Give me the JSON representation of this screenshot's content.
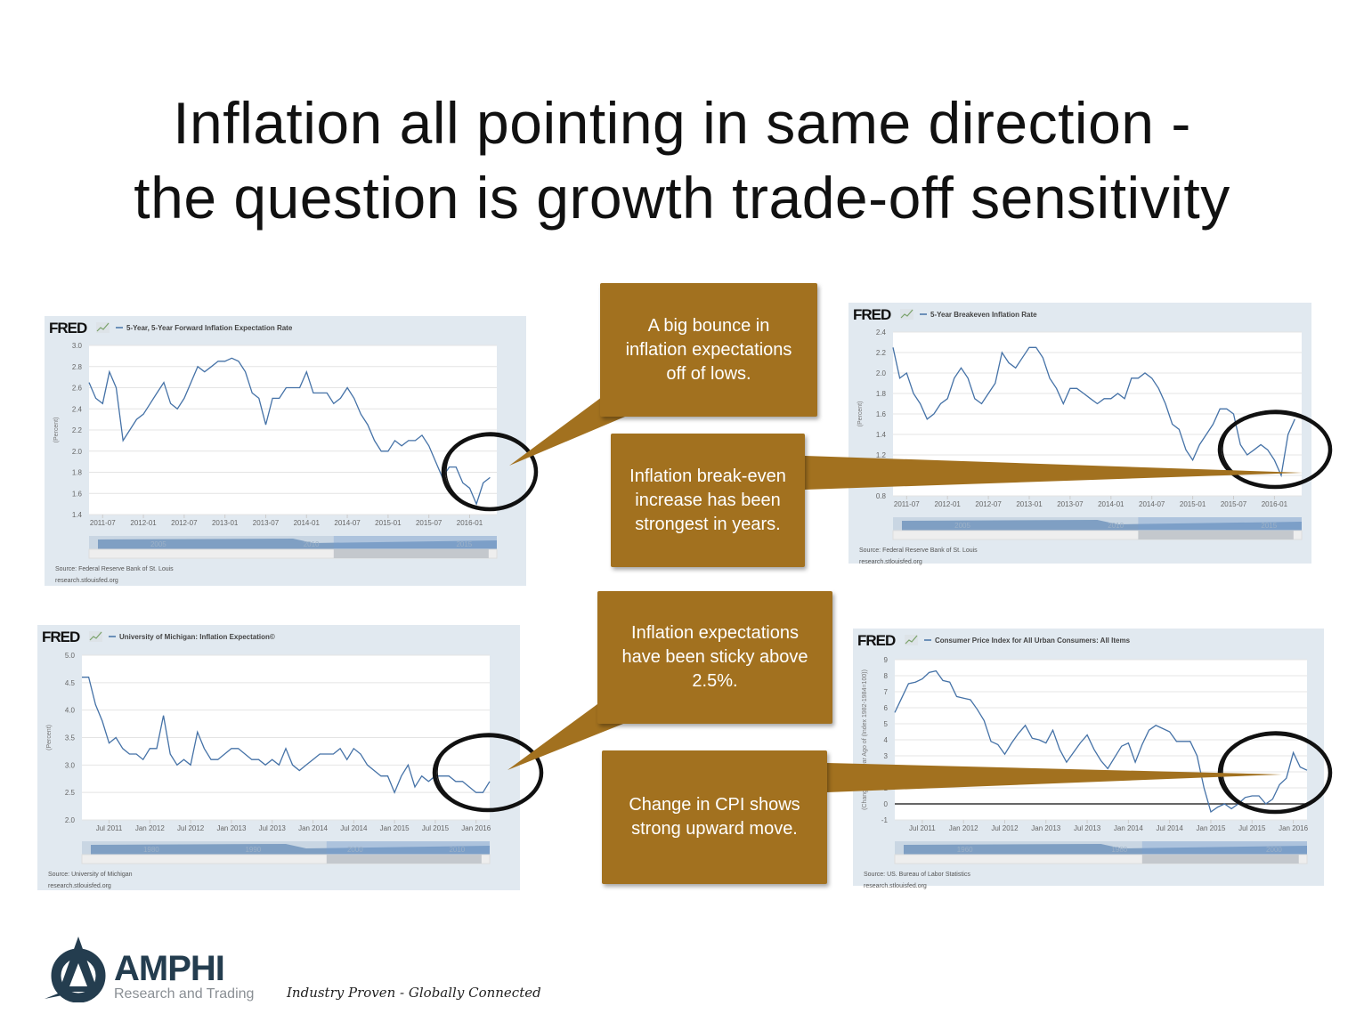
{
  "slide": {
    "title_lines": [
      "Inflation all pointing in same direction -",
      "the question is growth trade-off sensitivity"
    ]
  },
  "callouts": [
    {
      "text": [
        "A big bounce in",
        "inflation expectations",
        "off of lows."
      ]
    },
    {
      "text": [
        "Inflation break-even",
        "increase has been",
        "strongest in years."
      ]
    },
    {
      "text": [
        "Inflation expectations",
        "have been sticky above",
        "2.5%."
      ]
    },
    {
      "text": [
        "Change in CPI  shows",
        "strong upward move."
      ]
    }
  ],
  "colors": {
    "callout": "#a2711f",
    "series_line": "#4572a7",
    "panel_bg": "#e1e9f0",
    "circle": "#111111"
  },
  "footer": {
    "logo_text": "AMPHI",
    "logo_sub": "Research and Trading",
    "tagline": "Industry Proven - Globally Connected"
  },
  "chart_data": [
    {
      "type": "line",
      "brand": "FRED",
      "title": "5-Year, 5-Year Forward Inflation Expectation Rate",
      "ylabel": "(Percent)",
      "ylim": [
        1.4,
        3.0
      ],
      "yticks": [
        "3.0",
        "2.8",
        "2.6",
        "2.4",
        "2.2",
        "2.0",
        "1.8",
        "1.6",
        "1.4"
      ],
      "xlim": [
        "2011-05",
        "2016-05"
      ],
      "xticks": [
        {
          "at": "2011-07",
          "label": "2011-07"
        },
        {
          "at": "2012-01",
          "label": "2012-01"
        },
        {
          "at": "2012-07",
          "label": "2012-07"
        },
        {
          "at": "2013-01",
          "label": "2013-01"
        },
        {
          "at": "2013-07",
          "label": "2013-07"
        },
        {
          "at": "2014-01",
          "label": "2014-01"
        },
        {
          "at": "2014-07",
          "label": "2014-07"
        },
        {
          "at": "2015-01",
          "label": "2015-01"
        },
        {
          "at": "2015-07",
          "label": "2015-07"
        },
        {
          "at": "2016-01",
          "label": "2016-01"
        }
      ],
      "grid": true,
      "x_start": "2011-05",
      "values": [
        2.65,
        2.5,
        2.45,
        2.75,
        2.6,
        2.1,
        2.2,
        2.3,
        2.35,
        2.45,
        2.55,
        2.65,
        2.45,
        2.4,
        2.5,
        2.65,
        2.8,
        2.75,
        2.8,
        2.85,
        2.85,
        2.88,
        2.85,
        2.75,
        2.55,
        2.5,
        2.25,
        2.5,
        2.5,
        2.6,
        2.6,
        2.6,
        2.75,
        2.55,
        2.55,
        2.55,
        2.45,
        2.5,
        2.6,
        2.5,
        2.35,
        2.25,
        2.1,
        2.0,
        2.0,
        2.1,
        2.05,
        2.1,
        2.1,
        2.15,
        2.05,
        1.9,
        1.75,
        1.85,
        1.85,
        1.7,
        1.65,
        1.5,
        1.7,
        1.75
      ],
      "navigator_labels": [
        "2005",
        "2010",
        "2015"
      ],
      "source": "Source: Federal Reserve Bank of St. Louis",
      "url": "research.stlouisfed.org"
    },
    {
      "type": "line",
      "brand": "FRED",
      "title": "5-Year Breakeven Inflation Rate",
      "ylabel": "(Percent)",
      "ylim": [
        0.8,
        2.4
      ],
      "yticks": [
        "2.4",
        "2.2",
        "2.0",
        "1.8",
        "1.6",
        "1.4",
        "1.2",
        "1.0",
        "0.8"
      ],
      "xlim": [
        "2011-05",
        "2016-05"
      ],
      "xticks": [
        {
          "at": "2011-07",
          "label": "2011-07"
        },
        {
          "at": "2012-01",
          "label": "2012-01"
        },
        {
          "at": "2012-07",
          "label": "2012-07"
        },
        {
          "at": "2013-01",
          "label": "2013-01"
        },
        {
          "at": "2013-07",
          "label": "2013-07"
        },
        {
          "at": "2014-01",
          "label": "2014-01"
        },
        {
          "at": "2014-07",
          "label": "2014-07"
        },
        {
          "at": "2015-01",
          "label": "2015-01"
        },
        {
          "at": "2015-07",
          "label": "2015-07"
        },
        {
          "at": "2016-01",
          "label": "2016-01"
        }
      ],
      "grid": true,
      "x_start": "2011-05",
      "values": [
        2.25,
        1.95,
        2.0,
        1.8,
        1.7,
        1.55,
        1.6,
        1.7,
        1.75,
        1.95,
        2.05,
        1.95,
        1.75,
        1.7,
        1.8,
        1.9,
        2.2,
        2.1,
        2.05,
        2.15,
        2.25,
        2.25,
        2.15,
        1.95,
        1.85,
        1.7,
        1.85,
        1.85,
        1.8,
        1.75,
        1.7,
        1.75,
        1.75,
        1.8,
        1.75,
        1.95,
        1.95,
        2.0,
        1.95,
        1.85,
        1.7,
        1.5,
        1.45,
        1.25,
        1.15,
        1.3,
        1.4,
        1.5,
        1.65,
        1.65,
        1.6,
        1.3,
        1.2,
        1.25,
        1.3,
        1.25,
        1.15,
        1.0,
        1.4,
        1.55
      ],
      "navigator_labels": [
        "2005",
        "2010",
        "2015"
      ],
      "source": "Source: Federal Reserve Bank of St. Louis",
      "url": "research.stlouisfed.org"
    },
    {
      "type": "line",
      "brand": "FRED",
      "title": "University of Michigan: Inflation Expectation©",
      "ylabel": "(Percent)",
      "ylim": [
        2.0,
        5.0
      ],
      "yticks": [
        "5.0",
        "4.5",
        "4.0",
        "3.5",
        "3.0",
        "2.5",
        "2.0"
      ],
      "xlim": [
        "2011-03",
        "2016-03"
      ],
      "xticks": [
        {
          "at": "2011-07",
          "label": "Jul 2011"
        },
        {
          "at": "2012-01",
          "label": "Jan 2012"
        },
        {
          "at": "2012-07",
          "label": "Jul 2012"
        },
        {
          "at": "2013-01",
          "label": "Jan 2013"
        },
        {
          "at": "2013-07",
          "label": "Jul 2013"
        },
        {
          "at": "2014-01",
          "label": "Jan 2014"
        },
        {
          "at": "2014-07",
          "label": "Jul 2014"
        },
        {
          "at": "2015-01",
          "label": "Jan 2015"
        },
        {
          "at": "2015-07",
          "label": "Jul 2015"
        },
        {
          "at": "2016-01",
          "label": "Jan 2016"
        }
      ],
      "grid": true,
      "x_start": "2011-03",
      "values": [
        4.6,
        4.6,
        4.1,
        3.8,
        3.4,
        3.5,
        3.3,
        3.2,
        3.2,
        3.1,
        3.3,
        3.3,
        3.9,
        3.2,
        3.0,
        3.1,
        3.0,
        3.6,
        3.3,
        3.1,
        3.1,
        3.2,
        3.3,
        3.3,
        3.2,
        3.1,
        3.1,
        3.0,
        3.1,
        3.0,
        3.3,
        3.0,
        2.9,
        3.0,
        3.1,
        3.2,
        3.2,
        3.2,
        3.3,
        3.1,
        3.3,
        3.2,
        3.0,
        2.9,
        2.8,
        2.8,
        2.5,
        2.8,
        3.0,
        2.6,
        2.8,
        2.7,
        2.8,
        2.8,
        2.8,
        2.7,
        2.7,
        2.6,
        2.5,
        2.5,
        2.7
      ],
      "navigator_labels": [
        "1980",
        "1990",
        "2000",
        "2010"
      ],
      "source": "Source: University of Michigan",
      "url": "research.stlouisfed.org"
    },
    {
      "type": "line",
      "brand": "FRED",
      "title": "Consumer Price Index for All Urban Consumers: All Items",
      "ylabel": "(Change from Year Ago of (Index 1982-1984=100))",
      "ylim": [
        -1,
        9
      ],
      "yticks": [
        "9",
        "8",
        "7",
        "6",
        "5",
        "4",
        "3",
        "2",
        "1",
        "0",
        "-1"
      ],
      "xlim": [
        "2011-03",
        "2016-03"
      ],
      "xticks": [
        {
          "at": "2011-07",
          "label": "Jul 2011"
        },
        {
          "at": "2012-01",
          "label": "Jan 2012"
        },
        {
          "at": "2012-07",
          "label": "Jul 2012"
        },
        {
          "at": "2013-01",
          "label": "Jan 2013"
        },
        {
          "at": "2013-07",
          "label": "Jul 2013"
        },
        {
          "at": "2014-01",
          "label": "Jan 2014"
        },
        {
          "at": "2014-07",
          "label": "Jul 2014"
        },
        {
          "at": "2015-01",
          "label": "Jan 2015"
        },
        {
          "at": "2015-07",
          "label": "Jul 2015"
        },
        {
          "at": "2016-01",
          "label": "Jan 2016"
        }
      ],
      "grid": true,
      "zero_line": true,
      "x_start": "2011-03",
      "values": [
        5.7,
        6.6,
        7.5,
        7.6,
        7.8,
        8.2,
        8.3,
        7.7,
        7.6,
        6.7,
        6.6,
        6.5,
        5.9,
        5.2,
        3.9,
        3.7,
        3.1,
        3.8,
        4.4,
        4.9,
        4.1,
        4.0,
        3.8,
        4.6,
        3.4,
        2.6,
        3.2,
        3.8,
        4.3,
        3.4,
        2.7,
        2.2,
        2.9,
        3.6,
        3.8,
        2.6,
        3.7,
        4.6,
        4.9,
        4.7,
        4.5,
        3.9,
        3.9,
        3.9,
        3.0,
        1.0,
        -0.5,
        -0.2,
        0.0,
        -0.3,
        0.0,
        0.4,
        0.5,
        0.5,
        0.0,
        0.3,
        1.2,
        1.6,
        3.2,
        2.3,
        2.1
      ],
      "navigator_labels": [
        "1960",
        "1980",
        "2000"
      ],
      "source": "Source: US. Bureau of Labor Statistics",
      "url": "research.stlouisfed.org"
    }
  ]
}
